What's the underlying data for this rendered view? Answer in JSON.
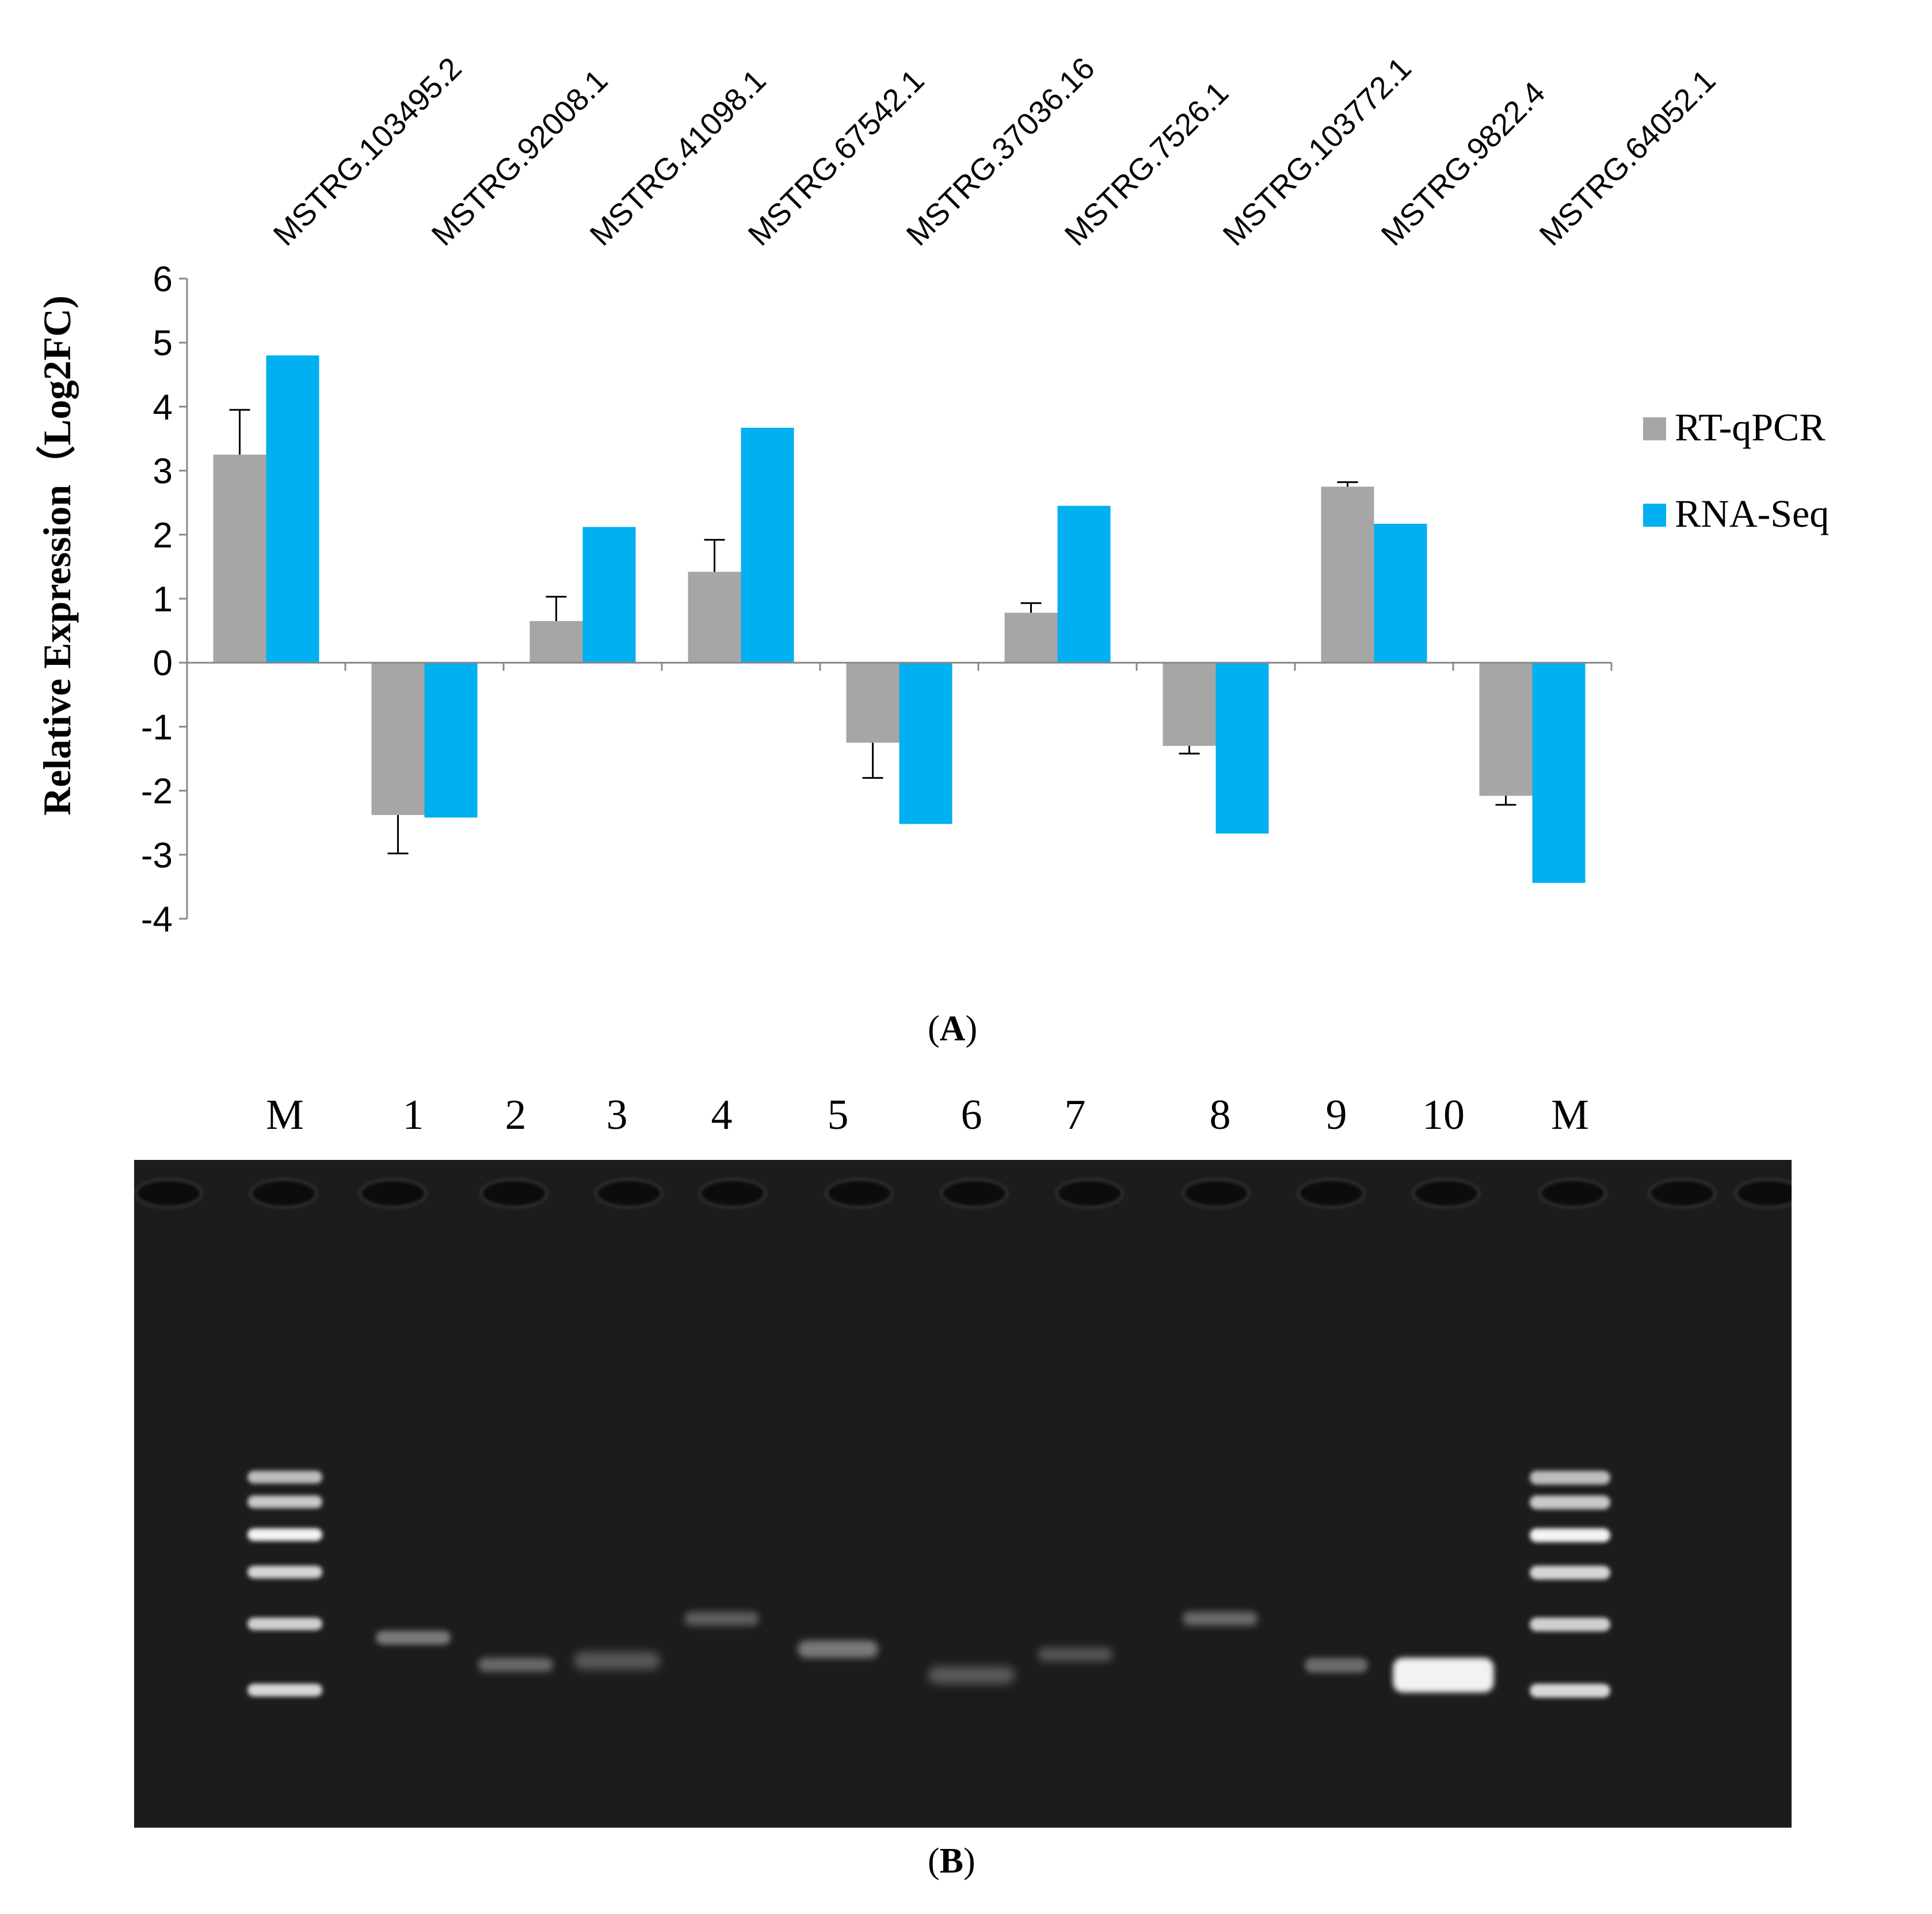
{
  "chart_data": {
    "type": "bar",
    "title": "",
    "xlabel": "",
    "ylabel": "Relative Expression（Log2FC)",
    "ylim": [
      -4,
      6
    ],
    "yticks": [
      6,
      5,
      4,
      3,
      2,
      1,
      0,
      -1,
      -2,
      -3,
      -4
    ],
    "categories": [
      "MSTRG.103495.2",
      "MSTRG.92008.1",
      "MSTRG.41098.1",
      "MSTRG.67542.1",
      "MSTRG.37036.16",
      "MSTRG.7526.1",
      "MSTRG.103772.1",
      "MSTRG.9822.4",
      "MSTRG.64052.1"
    ],
    "series": [
      {
        "name": "RT-qPCR",
        "color": "#A6A6A6",
        "values": [
          3.25,
          -2.38,
          0.65,
          1.42,
          -1.25,
          0.78,
          -1.3,
          2.75,
          -2.08
        ],
        "errors": [
          0.7,
          0.6,
          0.38,
          0.5,
          0.55,
          0.15,
          0.12,
          0.07,
          0.14
        ]
      },
      {
        "name": "RNA-Seq",
        "color": "#00B0F0",
        "values": [
          4.8,
          -2.42,
          2.12,
          3.67,
          -2.52,
          2.45,
          -2.67,
          2.17,
          -3.44
        ]
      }
    ],
    "legend": "right",
    "grid": false
  },
  "panel_a_label": "A",
  "panel_b_label": "B",
  "gel": {
    "lane_labels": [
      "M",
      "1",
      "2",
      "3",
      "4",
      "5",
      "6",
      "7",
      "8",
      "9",
      "10",
      "M"
    ]
  }
}
